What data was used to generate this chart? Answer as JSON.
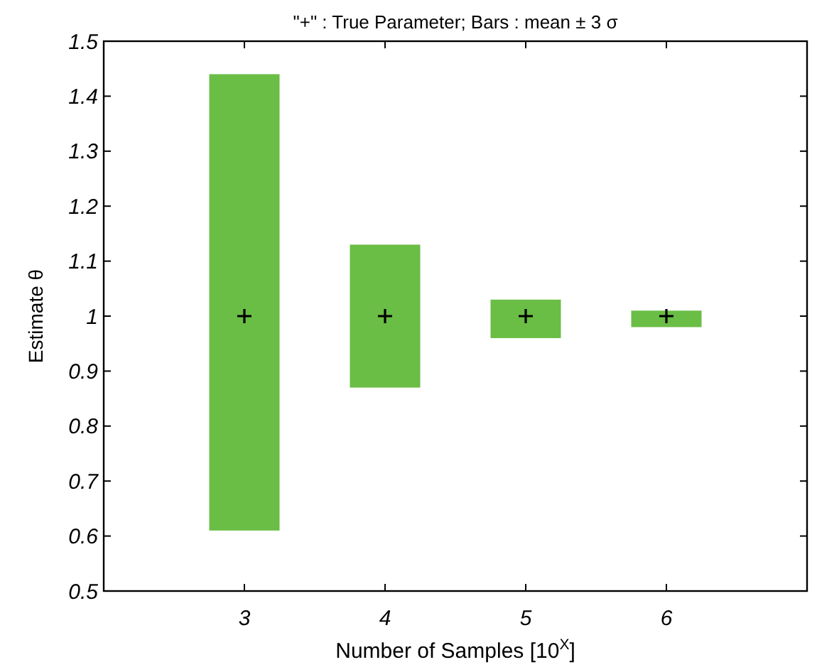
{
  "chart_data": {
    "type": "bar",
    "title": "\"+\" : True Parameter; Bars : mean ± 3 σ",
    "xlabel": "Number of Samples [10$^{X}$]",
    "ylabel": "Estimate θ",
    "x": [
      3,
      4,
      5,
      6
    ],
    "series": [
      {
        "color": "#6abd45",
        "base": [
          0.61,
          0.87,
          0.96,
          0.98
        ],
        "values": [
          0.83,
          0.26,
          0.07,
          0.03
        ]
      },
      {
        "type": "scatter",
        "color": "#000000",
        "marker": "cross",
        "values": [
          1,
          1,
          1,
          1
        ]
      }
    ],
    "xlim": [
      2,
      7
    ],
    "xticks": [
      {
        "value": 2,
        "label": null
      },
      3,
      4,
      5,
      6,
      {
        "value": 7,
        "label": null
      }
    ],
    "ylim": [
      0.5,
      1.5
    ],
    "yticks": [
      0.5,
      0.6,
      0.7,
      0.8,
      0.9,
      1,
      1.1,
      1.2,
      1.3,
      1.4,
      1.5
    ],
    "grid": false
  }
}
